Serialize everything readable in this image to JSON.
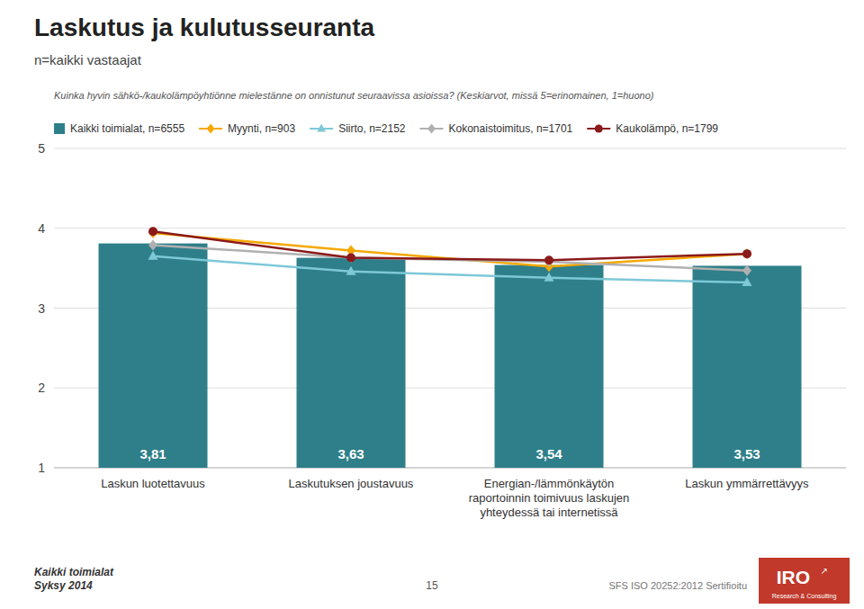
{
  "chart_data": {
    "type": "bar",
    "title": "Laskutus ja kulutusseuranta",
    "subtitle": "n=kaikki vastaajat",
    "question": "Kuinka hyvin sähkö-/kaukolämpöyhtiönne mielestänne on onnistunut seuraavissa asioissa? (Keskiarvot, missä 5=erinomainen, 1=huono)",
    "categories": [
      "Laskun luotettavuus",
      "Laskutuksen joustavuus",
      "Energian-/lämmönkäytön\nraportoinnin toimivuus laskujen\nyhteydessä tai internetissä",
      "Laskun ymmärrettävyys"
    ],
    "series": [
      {
        "name": "Kaikki toimialat, n=6555",
        "type": "bar",
        "color": "#2e7f8a",
        "values": [
          3.81,
          3.63,
          3.54,
          3.53
        ],
        "value_labels": [
          "3,81",
          "3,63",
          "3,54",
          "3,53"
        ]
      },
      {
        "name": "Myynti, n=903",
        "type": "line",
        "color": "#f5a800",
        "marker": "diamond",
        "values": [
          3.94,
          3.72,
          3.52,
          3.68
        ]
      },
      {
        "name": "Siirto, n=2152",
        "type": "line",
        "color": "#7ec8d8",
        "marker": "triangle",
        "values": [
          3.65,
          3.46,
          3.38,
          3.32
        ]
      },
      {
        "name": "Kokonaistoimitus, n=1701",
        "type": "line",
        "color": "#b0b0b0",
        "marker": "diamond",
        "values": [
          3.79,
          3.63,
          3.58,
          3.47
        ]
      },
      {
        "name": "Kaukolämpö, n=1799",
        "type": "line",
        "color": "#8b1a1a",
        "marker": "circle",
        "values": [
          3.96,
          3.63,
          3.6,
          3.68
        ]
      }
    ],
    "data_labels": true,
    "ylim": [
      1,
      5
    ],
    "yticks": [
      1,
      2,
      3,
      4,
      5
    ],
    "grid": true,
    "legend": "upper left",
    "footer_left": "Kaikki toimialat\nSyksy 2014",
    "footer_center": "15",
    "footer_right": "SFS ISO 20252:2012 Sertifioitu",
    "logo_text": "IRO",
    "logo_symbol": "↗",
    "logo_tagline": "Research & Consulting",
    "logo_color": "#c0392b"
  }
}
